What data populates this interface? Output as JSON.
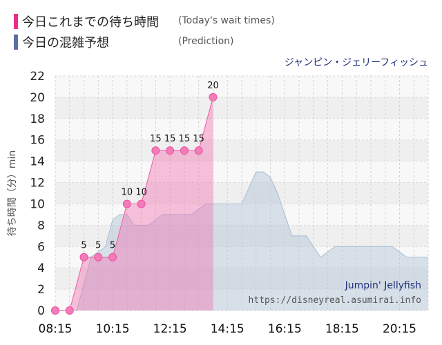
{
  "legend": {
    "items": [
      {
        "label": "今日これまでの待ち時間",
        "desc": "(Today's wait times)",
        "color": "#ee2d8a"
      },
      {
        "label": "今日の混雑予想",
        "desc": "(Prediction)",
        "color": "#5b6fa3"
      }
    ]
  },
  "attraction_name": "ジャンピン・ジェリーフィッシュ",
  "watermark": {
    "name": "Jumpin' Jellyfish",
    "url": "https://disneyreal.asumirai.info"
  },
  "chart_data": {
    "type": "area",
    "ylabel": "待ち時間（分）min",
    "ylim": [
      0,
      22
    ],
    "yticks": [
      0,
      2,
      4,
      6,
      8,
      10,
      12,
      14,
      16,
      18,
      20,
      22
    ],
    "x_tick_labels": [
      "08:15",
      "10:15",
      "12:15",
      "14:15",
      "16:15",
      "18:15",
      "20:15"
    ],
    "x_tick_minutes": [
      495,
      615,
      735,
      855,
      975,
      1095,
      1215
    ],
    "xlim": [
      "08:15",
      "21:15"
    ],
    "grid": true,
    "series": [
      {
        "name": "今日の混雑予想",
        "color": "#b5c7d8",
        "x": [
          "08:15",
          "08:30",
          "08:45",
          "09:00",
          "09:30",
          "09:45",
          "10:00",
          "10:15",
          "10:30",
          "10:45",
          "11:00",
          "11:15",
          "11:30",
          "11:45",
          "12:00",
          "12:15",
          "12:30",
          "12:45",
          "13:00",
          "13:15",
          "13:30",
          "13:45",
          "14:00",
          "14:15",
          "14:30",
          "14:45",
          "15:00",
          "15:15",
          "15:30",
          "15:45",
          "16:00",
          "16:15",
          "16:30",
          "16:45",
          "17:00",
          "17:15",
          "17:30",
          "17:45",
          "18:00",
          "18:15",
          "18:30",
          "18:45",
          "19:00",
          "19:15",
          "19:30",
          "19:45",
          "20:00",
          "20:15",
          "20:30",
          "20:45",
          "21:00",
          "21:15"
        ],
        "y": [
          0,
          0,
          0,
          0,
          5,
          5.5,
          6,
          8.5,
          9,
          9,
          8,
          8,
          8,
          8.5,
          9,
          9,
          9,
          9,
          9,
          9.5,
          10,
          10,
          10,
          10,
          10,
          10,
          11.5,
          13,
          13,
          12.5,
          11,
          9,
          7,
          7,
          7,
          6,
          5,
          5.5,
          6,
          6,
          6,
          6,
          6,
          6,
          6,
          6,
          6,
          5.5,
          5,
          5,
          5,
          5
        ]
      },
      {
        "name": "今日これまでの待ち時間",
        "color": "#ee2d8a",
        "x": [
          "08:15",
          "08:45",
          "09:15",
          "09:45",
          "10:15",
          "10:45",
          "11:15",
          "11:45",
          "12:15",
          "12:45",
          "13:15",
          "13:45"
        ],
        "y": [
          0,
          0,
          5,
          5,
          5,
          10,
          10,
          15,
          15,
          15,
          15,
          20
        ],
        "data_labels": [
          "",
          "",
          "5",
          "5",
          "5",
          "10",
          "10",
          "15",
          "15",
          "15",
          "15",
          "20"
        ]
      }
    ]
  }
}
